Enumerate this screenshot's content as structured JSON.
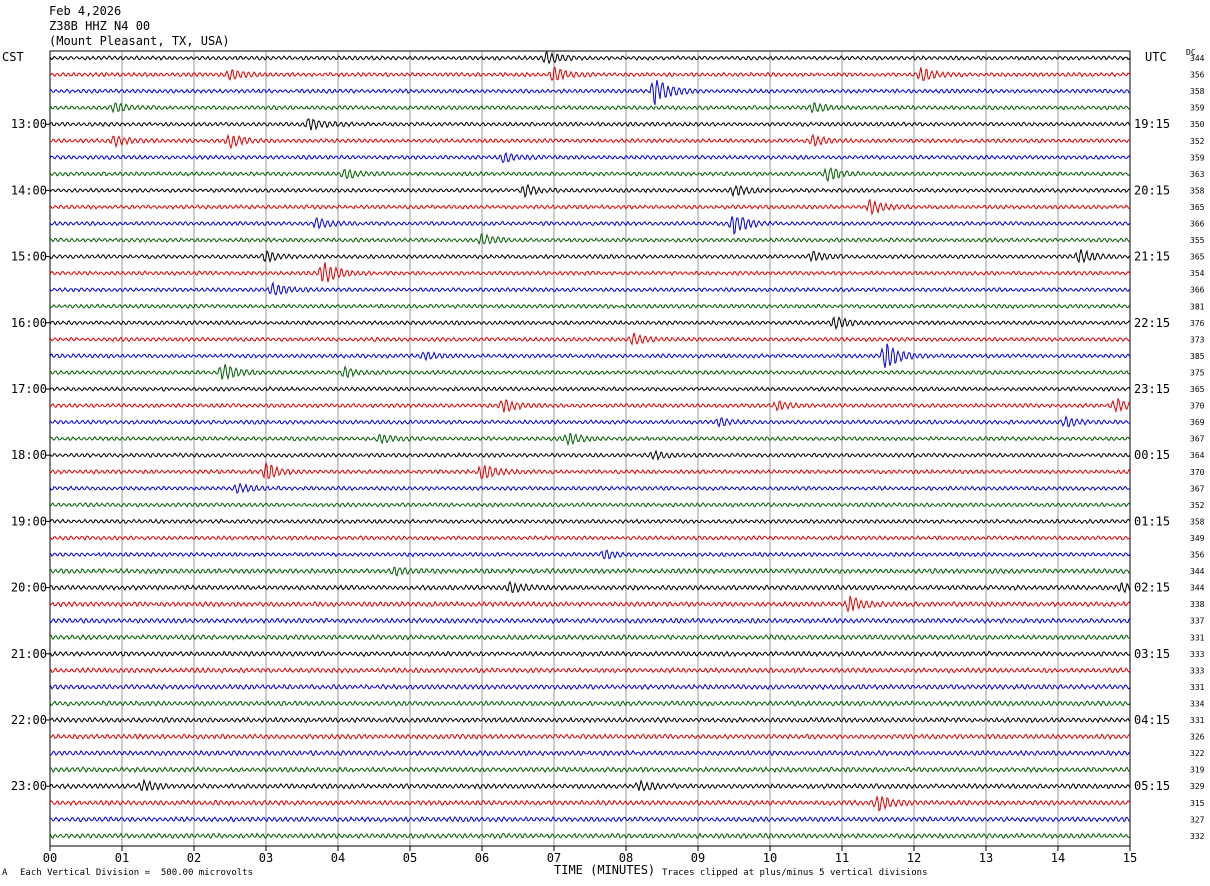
{
  "header": {
    "date": "Feb 4,2026",
    "station": "Z38B HHZ N4 00",
    "location": "(Mount Pleasant, TX, USA)"
  },
  "left_timezone": "CST",
  "right_timezone": "UTC",
  "dc_label": "DC",
  "footer": {
    "corner": "A",
    "scale": "Each Vertical Division =  500.00 microvolts",
    "clip": "Traces clipped at plus/minus 5 vertical divisions"
  },
  "trace_colors": [
    "#000000",
    "#e00000",
    "#0000e0",
    "#006000"
  ],
  "chart_data": {
    "type": "line",
    "xlabel": "TIME (MINUTES)",
    "xlim": [
      0,
      15
    ],
    "x_ticks": [
      "00",
      "01",
      "02",
      "03",
      "04",
      "05",
      "06",
      "07",
      "08",
      "09",
      "10",
      "11",
      "12",
      "13",
      "14",
      "15"
    ],
    "left_hour_labels": [
      "13:00",
      "14:00",
      "15:00",
      "16:00",
      "17:00",
      "18:00",
      "19:00",
      "20:00",
      "21:00",
      "22:00",
      "23:00"
    ],
    "right_hour_labels": [
      "19:15",
      "20:15",
      "21:15",
      "22:15",
      "23:15",
      "00:15",
      "01:15",
      "02:15",
      "03:15",
      "04:15",
      "05:15"
    ],
    "rows_per_hour": 4,
    "first_labeled_row": 4,
    "dc_offsets": [
      344,
      356,
      358,
      359,
      350,
      352,
      359,
      363,
      358,
      365,
      366,
      355,
      365,
      354,
      366,
      381,
      376,
      373,
      385,
      375,
      365,
      370,
      369,
      367,
      364,
      370,
      367,
      352,
      358,
      349,
      356,
      344,
      344,
      338,
      337,
      331,
      333,
      333,
      331,
      334,
      331,
      326,
      322,
      319,
      329,
      315,
      327,
      332
    ],
    "events": [
      {
        "row": 0,
        "minute": 6.9,
        "amp": 1.6
      },
      {
        "row": 1,
        "minute": 7.0,
        "amp": 2.0
      },
      {
        "row": 1,
        "minute": 12.1,
        "amp": 1.8
      },
      {
        "row": 1,
        "minute": 2.5,
        "amp": 1.2
      },
      {
        "row": 2,
        "minute": 8.4,
        "amp": 4.0
      },
      {
        "row": 3,
        "minute": 0.9,
        "amp": 1.2
      },
      {
        "row": 3,
        "minute": 10.6,
        "amp": 1.2
      },
      {
        "row": 4,
        "minute": 3.6,
        "amp": 1.6
      },
      {
        "row": 5,
        "minute": 0.9,
        "amp": 1.6
      },
      {
        "row": 5,
        "minute": 2.5,
        "amp": 2.0
      },
      {
        "row": 5,
        "minute": 10.6,
        "amp": 1.4
      },
      {
        "row": 6,
        "minute": 6.3,
        "amp": 1.2
      },
      {
        "row": 7,
        "minute": 10.8,
        "amp": 1.8
      },
      {
        "row": 7,
        "minute": 4.1,
        "amp": 1.2
      },
      {
        "row": 8,
        "minute": 6.6,
        "amp": 1.4
      },
      {
        "row": 8,
        "minute": 9.5,
        "amp": 1.4
      },
      {
        "row": 9,
        "minute": 11.4,
        "amp": 2.0
      },
      {
        "row": 10,
        "minute": 9.5,
        "amp": 3.0
      },
      {
        "row": 10,
        "minute": 3.7,
        "amp": 1.4
      },
      {
        "row": 11,
        "minute": 6.0,
        "amp": 1.6
      },
      {
        "row": 12,
        "minute": 3.0,
        "amp": 1.4
      },
      {
        "row": 12,
        "minute": 10.6,
        "amp": 1.4
      },
      {
        "row": 12,
        "minute": 14.3,
        "amp": 2.0
      },
      {
        "row": 13,
        "minute": 3.8,
        "amp": 3.2
      },
      {
        "row": 14,
        "minute": 3.1,
        "amp": 1.6
      },
      {
        "row": 16,
        "minute": 10.9,
        "amp": 1.6
      },
      {
        "row": 17,
        "minute": 8.1,
        "amp": 1.6
      },
      {
        "row": 18,
        "minute": 11.6,
        "amp": 4.0
      },
      {
        "row": 18,
        "minute": 5.2,
        "amp": 1.0
      },
      {
        "row": 19,
        "minute": 2.4,
        "amp": 2.4
      },
      {
        "row": 19,
        "minute": 4.1,
        "amp": 1.2
      },
      {
        "row": 21,
        "minute": 6.3,
        "amp": 1.8
      },
      {
        "row": 21,
        "minute": 14.8,
        "amp": 1.8
      },
      {
        "row": 21,
        "minute": 10.1,
        "amp": 1.2
      },
      {
        "row": 22,
        "minute": 9.3,
        "amp": 1.0
      },
      {
        "row": 22,
        "minute": 14.1,
        "amp": 1.2
      },
      {
        "row": 23,
        "minute": 7.2,
        "amp": 1.6
      },
      {
        "row": 23,
        "minute": 4.6,
        "amp": 1.2
      },
      {
        "row": 24,
        "minute": 8.4,
        "amp": 1.0
      },
      {
        "row": 25,
        "minute": 3.0,
        "amp": 2.2
      },
      {
        "row": 25,
        "minute": 6.0,
        "amp": 2.2
      },
      {
        "row": 26,
        "minute": 2.6,
        "amp": 1.2
      },
      {
        "row": 30,
        "minute": 7.7,
        "amp": 1.0
      },
      {
        "row": 31,
        "minute": 4.8,
        "amp": 1.0
      },
      {
        "row": 32,
        "minute": 6.4,
        "amp": 1.4
      },
      {
        "row": 32,
        "minute": 14.9,
        "amp": 1.2
      },
      {
        "row": 33,
        "minute": 11.1,
        "amp": 2.2
      },
      {
        "row": 44,
        "minute": 1.3,
        "amp": 1.4
      },
      {
        "row": 44,
        "minute": 8.2,
        "amp": 1.2
      },
      {
        "row": 45,
        "minute": 11.5,
        "amp": 2.2
      }
    ]
  }
}
